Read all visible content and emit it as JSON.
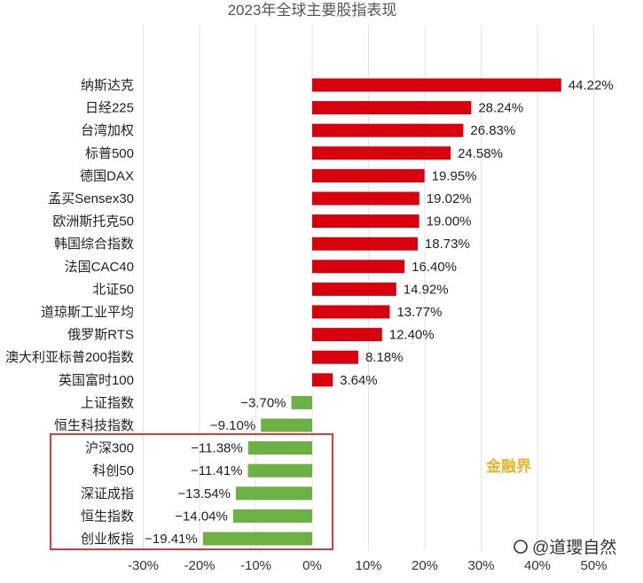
{
  "chart_data": {
    "type": "bar",
    "orientation": "horizontal",
    "title": "2023年全球主要股指表现",
    "categories": [
      "纳斯达克",
      "日经225",
      "台湾加权",
      "标普500",
      "德国DAX",
      "孟买Sensex30",
      "欧洲斯托克50",
      "韩国综合指数",
      "法国CAC40",
      "北证50",
      "道琼斯工业平均",
      "俄罗斯RTS",
      "澳大利亚标普200指数",
      "英国富时100",
      "上证指数",
      "恒生科技指数",
      "沪深300",
      "科创50",
      "深证成指",
      "恒生指数",
      "创业板指"
    ],
    "values": [
      44.22,
      28.24,
      26.83,
      24.58,
      19.95,
      19.02,
      19.0,
      18.73,
      16.4,
      14.92,
      13.77,
      12.4,
      8.18,
      3.64,
      -3.7,
      -9.1,
      -11.38,
      -11.41,
      -13.54,
      -14.04,
      -19.41
    ],
    "value_labels": [
      "44.22%",
      "28.24%",
      "26.83%",
      "24.58%",
      "19.95%",
      "19.02%",
      "19.00%",
      "18.73%",
      "16.40%",
      "14.92%",
      "13.77%",
      "12.40%",
      "8.18%",
      "3.64%",
      "−3.70%",
      "−9.10%",
      "−11.38%",
      "−11.41%",
      "−13.54%",
      "−14.04%",
      "−19.41%"
    ],
    "xlim": [
      -30,
      50
    ],
    "xticks": [
      "-30%",
      "-20%",
      "-10%",
      "0%",
      "10%",
      "20%",
      "30%",
      "40%",
      "50%"
    ],
    "grid": true,
    "colors": {
      "positive": "#d9000d",
      "negative": "#6db043",
      "highlight_box": "#e23a3a",
      "watermark": "#e8b42a"
    },
    "highlight": {
      "from_index": 16,
      "to_index": 20
    }
  },
  "watermarks": {
    "source": "金融界",
    "author": "@道瓔自然"
  }
}
